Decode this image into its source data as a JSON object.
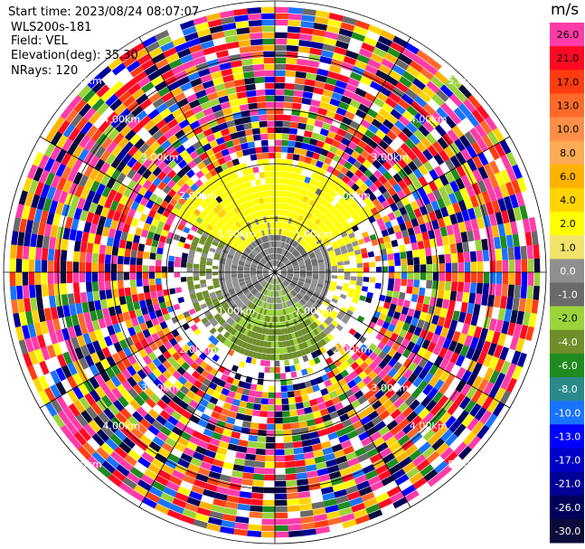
{
  "header": {
    "start_time": "Start time: 2023/08/24 08:07:07",
    "instrument": "WLS200s-181",
    "field": "Field: VEL",
    "elevation": "Elevation(deg): 35.30",
    "nrays": "NRays: 120"
  },
  "colorbar": {
    "unit": "m/s",
    "entries": [
      {
        "label": "26.0",
        "color": "#ff3ba8"
      },
      {
        "label": "21.0",
        "color": "#ff0a22"
      },
      {
        "label": "17.0",
        "color": "#ff3c10"
      },
      {
        "label": "13.0",
        "color": "#ff6a2a"
      },
      {
        "label": "10.0",
        "color": "#ff8f48"
      },
      {
        "label": "8.0",
        "color": "#ffaa55"
      },
      {
        "label": "6.0",
        "color": "#ffb300"
      },
      {
        "label": "4.0",
        "color": "#ffd400"
      },
      {
        "label": "2.0",
        "color": "#ffff00"
      },
      {
        "label": "1.0",
        "color": "#f2e36b"
      },
      {
        "label": "0.0",
        "color": "#8f8f8f"
      },
      {
        "label": "-1.0",
        "color": "#6a6a6a"
      },
      {
        "label": "-2.0",
        "color": "#9ad33a"
      },
      {
        "label": "-4.0",
        "color": "#6f8e2a"
      },
      {
        "label": "-6.0",
        "color": "#1f8b1f"
      },
      {
        "label": "-8.0",
        "color": "#2a8a8a"
      },
      {
        "label": "-10.0",
        "color": "#1a73ff"
      },
      {
        "label": "-13.0",
        "color": "#0000ff"
      },
      {
        "label": "-17.0",
        "color": "#0000c8"
      },
      {
        "label": "-21.0",
        "color": "#000096"
      },
      {
        "label": "-26.0",
        "color": "#00005a"
      },
      {
        "label": "-30.0",
        "color": "#0b0b3a"
      }
    ]
  },
  "chart_data": {
    "type": "heatmap",
    "projection": "polar PPI",
    "field": "VEL",
    "units": "m/s",
    "n_rays": 120,
    "elevation_deg": 35.3,
    "range_ring_labels": [
      "1.00km",
      "2.00km",
      "3.00km",
      "4.00km",
      "5.00km"
    ],
    "max_range_km": 5.0,
    "pattern": {
      "near_center_km": 0.7,
      "yellow_zone": "north, 0.3-2.1 km, ~2 m/s",
      "gray_zone": "center and east, 0-1 km, ~0 m/s",
      "olive_zone": "south, 0.3-1.5 km, ~-2 to -4 m/s",
      "noise_beyond_km": 2.1
    }
  }
}
